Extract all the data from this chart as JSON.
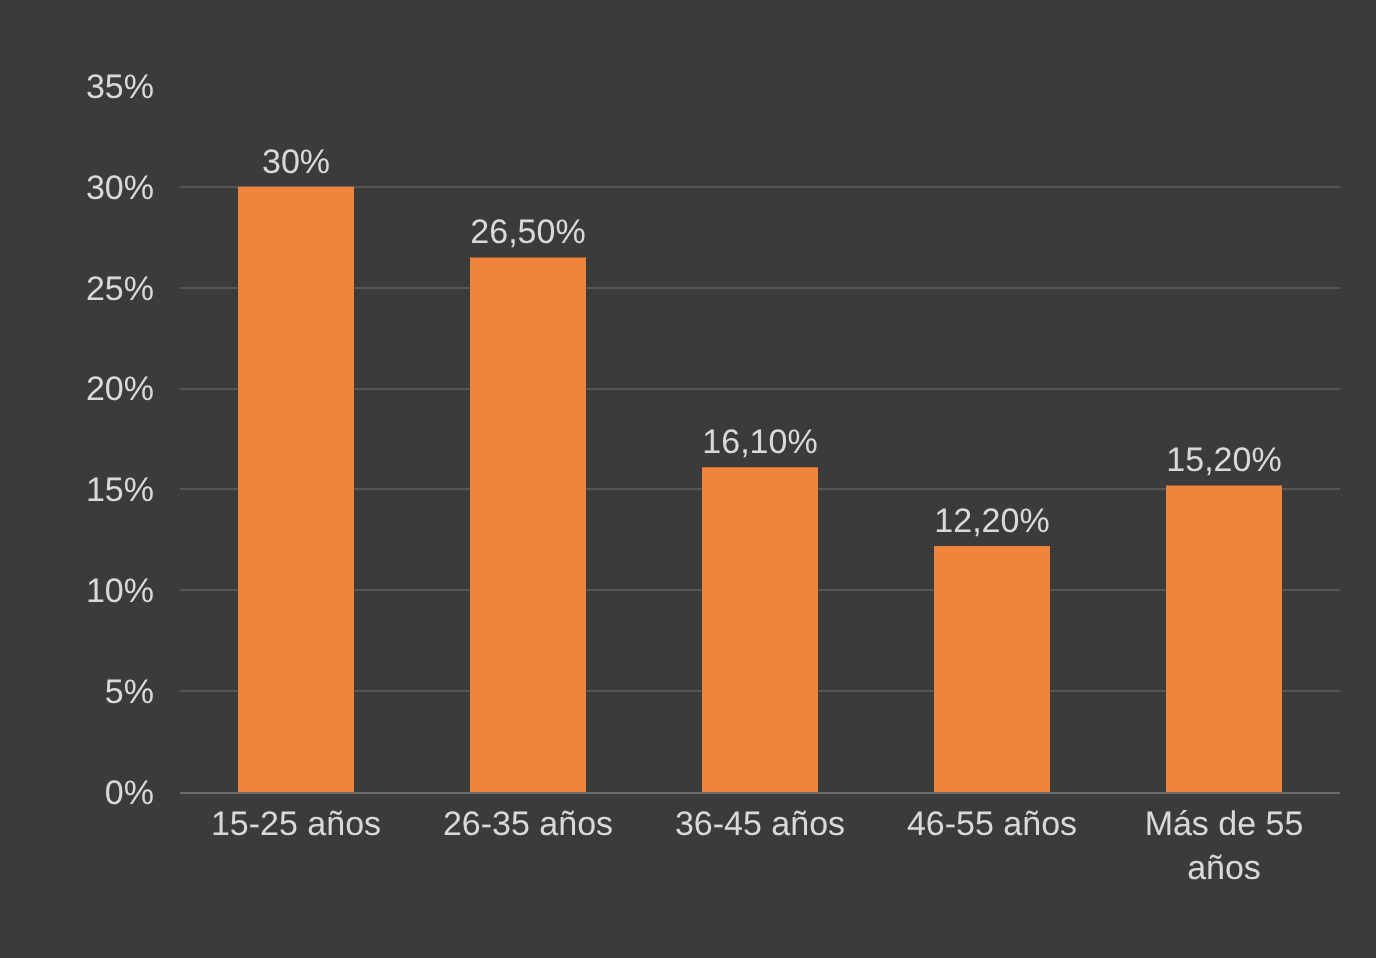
{
  "chart_data": {
    "type": "bar",
    "categories": [
      "15-25 años",
      "26-35 años",
      "36-45 años",
      "46-55 años",
      "Más de 55 años"
    ],
    "values": [
      30,
      26.5,
      16.1,
      12.2,
      15.2
    ],
    "value_labels": [
      "30%",
      "26,50%",
      "16,10%",
      "12,20%",
      "15,20%"
    ],
    "color": "#f0843a",
    "ylim": [
      0,
      35
    ],
    "yticks": [
      {
        "value": 0,
        "label": "0%"
      },
      {
        "value": 5,
        "label": "5%"
      },
      {
        "value": 10,
        "label": "10%"
      },
      {
        "value": 15,
        "label": "15%"
      },
      {
        "value": 20,
        "label": "20%"
      },
      {
        "value": 25,
        "label": "25%"
      },
      {
        "value": 30,
        "label": "30%"
      },
      {
        "value": 35,
        "label": "35%"
      }
    ],
    "grid": "y"
  }
}
